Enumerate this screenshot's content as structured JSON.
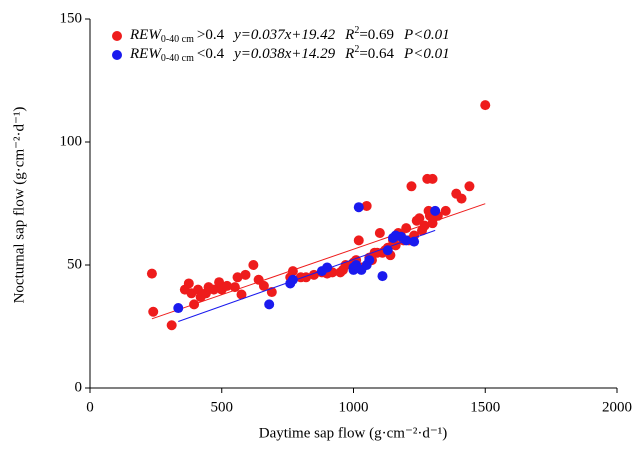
{
  "chart_data": {
    "type": "scatter",
    "xlabel": "Daytime sap flow (g·cm⁻²·d⁻¹)",
    "ylabel": "Nocturnal sap flow (g·cm⁻²·d⁻¹)",
    "xlim": [
      0,
      2000
    ],
    "xticks": [
      0,
      500,
      1000,
      1500,
      2000
    ],
    "ylim": [
      0,
      150
    ],
    "yticks": [
      0,
      50,
      100,
      150
    ],
    "series": [
      {
        "name": "REW",
        "name_subscript": "0-40 cm",
        "condition": ">0.4",
        "equation": "y=0.037x+19.42",
        "r2_symbol": "R",
        "r2_power": "2",
        "r2_value": "=0.69",
        "p_text": "P<0.01",
        "color": "#ee1c1c",
        "fit": {
          "slope": 0.037,
          "intercept": 19.42,
          "x_range": [
            235,
            1500
          ]
        },
        "x": [
          235,
          240,
          310,
          360,
          375,
          385,
          395,
          410,
          420,
          440,
          450,
          470,
          490,
          500,
          520,
          550,
          560,
          575,
          590,
          620,
          640,
          660,
          690,
          760,
          770,
          800,
          820,
          850,
          880,
          900,
          920,
          950,
          960,
          970,
          990,
          1000,
          1010,
          1020,
          1030,
          1050,
          1060,
          1070,
          1080,
          1090,
          1100,
          1110,
          1120,
          1130,
          1140,
          1150,
          1160,
          1170,
          1180,
          1190,
          1200,
          1210,
          1220,
          1230,
          1240,
          1250,
          1260,
          1270,
          1280,
          1285,
          1290,
          1300,
          1300,
          1320,
          1350,
          1390,
          1410,
          1440,
          1500
        ],
        "values": [
          46.5,
          31,
          25.5,
          40,
          42.5,
          38.5,
          34,
          40,
          37,
          38.5,
          41,
          40,
          43,
          40,
          41.5,
          41,
          45,
          38,
          46,
          50,
          44,
          41.5,
          39,
          45,
          47.5,
          45,
          45,
          46,
          47,
          46.5,
          47,
          47,
          48,
          50,
          50,
          51,
          52,
          60,
          49,
          74,
          53,
          52,
          55,
          55,
          63,
          55,
          56,
          57,
          54,
          60,
          58,
          63,
          62,
          60,
          65,
          60,
          82,
          62,
          68,
          69,
          64,
          66,
          85,
          72,
          70,
          85,
          67,
          70,
          72,
          79,
          77,
          82,
          115
        ]
      },
      {
        "name": "REW",
        "name_subscript": "0-40 cm",
        "condition": "<0.4",
        "equation": "y=0.038x+14.29",
        "r2_symbol": "R",
        "r2_power": "2",
        "r2_value": "=0.64",
        "p_text": "P<0.01",
        "color": "#1a1aee",
        "fit": {
          "slope": 0.038,
          "intercept": 14.29,
          "x_range": [
            335,
            1310
          ]
        },
        "x": [
          335,
          680,
          760,
          770,
          880,
          900,
          1000,
          1000,
          1010,
          1020,
          1030,
          1050,
          1060,
          1110,
          1130,
          1150,
          1160,
          1180,
          1200,
          1230,
          1310
        ],
        "values": [
          32.5,
          34,
          42.5,
          44,
          47.5,
          49,
          49,
          48,
          50,
          73.5,
          48,
          50,
          52,
          45.5,
          56,
          61,
          62,
          61.5,
          60,
          59.5,
          72
        ]
      }
    ]
  }
}
